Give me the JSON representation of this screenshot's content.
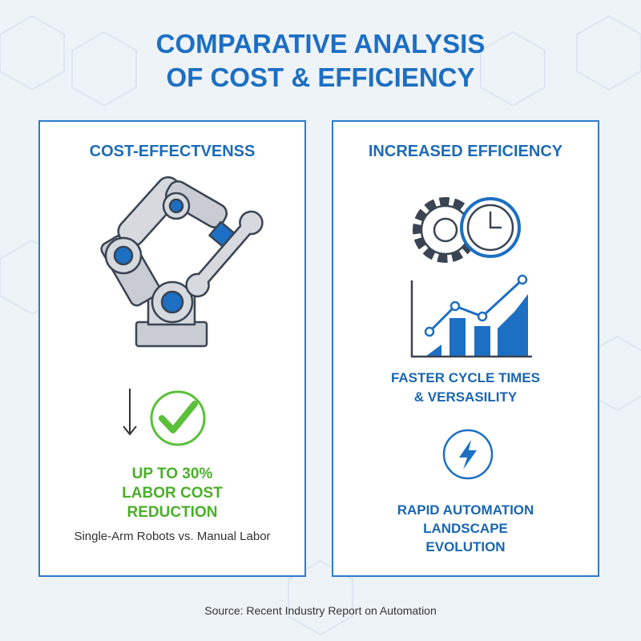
{
  "title_lines": [
    "COMPARATIVE ANALYSIS",
    "OF COST & EFFICIENCY"
  ],
  "left_panel": {
    "heading": "COST-EFFECTVENSS",
    "stat_lines": [
      "UP TO 30%",
      "LABOR COST",
      "REDUCTION"
    ],
    "caption": "Single-Arm Robots vs. Manual Labor"
  },
  "right_panel": {
    "heading": "INCREASED EFFICIENCY",
    "items": [
      {
        "lines": [
          "FASTER CYCLE TIMES",
          "& VERSASILITY"
        ]
      },
      {
        "lines": [
          "RAPID AUTOMATION",
          "LANDSCAPE",
          "EVOLUTION"
        ]
      }
    ]
  },
  "source": "Source: Recent Industry Report on Automation"
}
